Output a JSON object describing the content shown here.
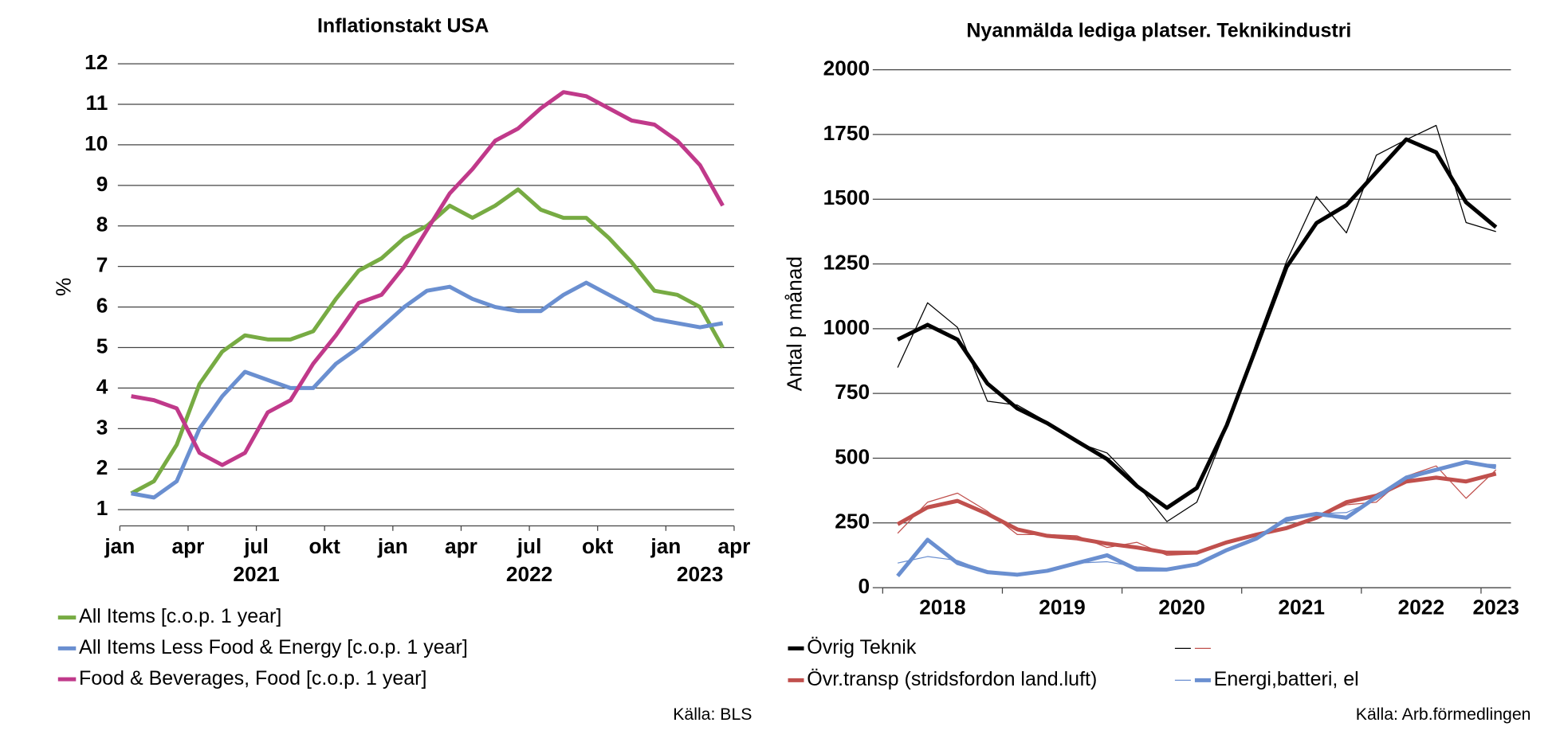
{
  "chart_data": [
    {
      "type": "line",
      "title": "Inflationstakt USA",
      "y_label": "%",
      "categories": [
        "jan",
        null,
        null,
        "apr",
        null,
        null,
        "jul",
        null,
        null,
        "okt",
        null,
        null,
        "jan",
        null,
        null,
        "apr",
        null,
        null,
        "jul",
        null,
        null,
        "okt",
        null,
        null,
        "jan",
        null,
        null,
        "apr"
      ],
      "years": [
        "2021",
        "2022",
        "2023"
      ],
      "ylim": [
        0.6,
        12
      ],
      "yticks": [
        1,
        2,
        3,
        4,
        5,
        6,
        7,
        8,
        9,
        10,
        11,
        12
      ],
      "grid": true,
      "series": [
        {
          "name": "All Items [c.o.p. 1 year]",
          "color": "#77ab43",
          "line_width": 4,
          "values": [
            1.4,
            1.7,
            2.6,
            4.1,
            4.9,
            5.3,
            5.2,
            5.2,
            5.4,
            6.2,
            6.9,
            7.2,
            7.7,
            8.0,
            8.5,
            8.2,
            8.5,
            8.9,
            8.4,
            8.2,
            8.2,
            7.7,
            7.1,
            6.4,
            6.3,
            6.0,
            5.0,
            null
          ]
        },
        {
          "name": "All Items Less Food & Energy [c.o.p. 1 year]",
          "color": "#6a8fd0",
          "line_width": 4,
          "values": [
            1.4,
            1.3,
            1.7,
            3.0,
            3.8,
            4.4,
            4.2,
            4.0,
            4.0,
            4.6,
            5.0,
            5.5,
            6.0,
            6.4,
            6.5,
            6.2,
            6.0,
            5.9,
            5.9,
            6.3,
            6.6,
            6.3,
            6.0,
            5.7,
            5.6,
            5.5,
            5.6,
            null
          ]
        },
        {
          "name": "Food & Beverages, Food [c.o.p. 1 year]",
          "color": "#c0398a",
          "line_width": 4,
          "values": [
            3.8,
            3.7,
            3.5,
            2.4,
            2.1,
            2.4,
            3.4,
            3.7,
            4.6,
            5.3,
            6.1,
            6.3,
            7.0,
            7.9,
            8.8,
            9.4,
            10.1,
            10.4,
            10.9,
            11.3,
            11.2,
            10.9,
            10.6,
            10.5,
            10.1,
            9.5,
            8.5,
            null
          ]
        }
      ],
      "source": "Källa: BLS"
    },
    {
      "type": "line",
      "title": "Nyanmälda lediga platser. Teknikindustri",
      "y_label": "Antal p månad",
      "years": [
        "2018",
        "2019",
        "2020",
        "2021",
        "2022",
        "2023"
      ],
      "ylim": [
        0,
        2000
      ],
      "yticks": [
        0,
        250,
        500,
        750,
        1000,
        1250,
        1500,
        1750,
        2000
      ],
      "grid": true,
      "series": [
        {
          "color": "#000000",
          "line_width": 1,
          "values": [
            850,
            1100,
            1005,
            720,
            705,
            640,
            560,
            520,
            400,
            255,
            330,
            620,
            950,
            1260,
            1510,
            1370,
            1670,
            1730,
            1785,
            1410,
            1375
          ]
        },
        {
          "color": "#c0504d",
          "line_width": 1,
          "values": [
            210,
            330,
            365,
            295,
            205,
            205,
            200,
            155,
            175,
            125,
            130,
            170,
            200,
            230,
            270,
            320,
            330,
            430,
            470,
            345,
            455
          ]
        },
        {
          "color": "#6a8fd0",
          "line_width": 1,
          "values": [
            95,
            120,
            105,
            60,
            45,
            65,
            95,
            100,
            80,
            75,
            90,
            145,
            195,
            255,
            285,
            290,
            340,
            415,
            455,
            480,
            475
          ]
        },
        {
          "name": "Övrig Teknik",
          "color": "#000000",
          "line_width": 4,
          "values": [
            958,
            1015,
            958,
            788,
            692,
            635,
            565,
            496,
            392,
            308,
            385,
            627,
            931,
            1238,
            1408,
            1477,
            1604,
            1731,
            1681,
            1488,
            1392
          ]
        },
        {
          "name": "Övr.transp (stridsfordon land.luft)",
          "color": "#c0504d",
          "line_width": 4,
          "values": [
            245,
            310,
            335,
            285,
            225,
            200,
            190,
            170,
            155,
            135,
            135,
            175,
            205,
            230,
            270,
            330,
            355,
            410,
            425,
            410,
            440
          ]
        },
        {
          "name": "Energi,batteri, el",
          "color": "#6a8fd0",
          "line_width": 4,
          "values": [
            45,
            185,
            95,
            60,
            50,
            65,
            95,
            125,
            70,
            70,
            90,
            145,
            190,
            265,
            285,
            270,
            350,
            425,
            455,
            485,
            465
          ]
        }
      ],
      "source": "Källa: Arb.förmedlingen"
    }
  ]
}
